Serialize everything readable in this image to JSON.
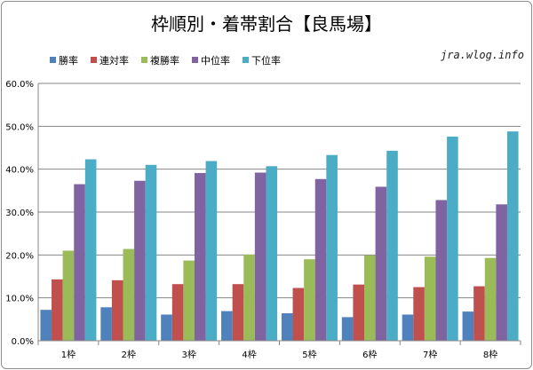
{
  "watermark": "jra.wlog.info",
  "chart_data": {
    "type": "bar",
    "title": "枠順別・着帯割合【良馬場】",
    "xlabel": "",
    "ylabel": "",
    "categories": [
      "1枠",
      "2枠",
      "3枠",
      "4枠",
      "5枠",
      "6枠",
      "7枠",
      "8枠"
    ],
    "ylim": [
      0,
      60
    ],
    "yticks": [
      "0.0%",
      "10.0%",
      "20.0%",
      "30.0%",
      "40.0%",
      "50.0%",
      "60.0%"
    ],
    "grid": true,
    "legend_position": "top-left",
    "series": [
      {
        "name": "勝率",
        "color": "#4f81bd",
        "values": [
          7.2,
          7.8,
          6.1,
          6.9,
          6.4,
          5.5,
          6.1,
          6.8
        ]
      },
      {
        "name": "連対率",
        "color": "#c0504d",
        "values": [
          14.3,
          14.1,
          13.2,
          13.2,
          12.3,
          13.1,
          12.5,
          12.7
        ]
      },
      {
        "name": "複勝率",
        "color": "#9bbb59",
        "values": [
          21.0,
          21.4,
          18.7,
          20.1,
          19.0,
          19.9,
          19.6,
          19.3
        ]
      },
      {
        "name": "中位率",
        "color": "#8064a2",
        "values": [
          36.5,
          37.3,
          39.1,
          39.2,
          37.7,
          35.9,
          32.8,
          31.8
        ]
      },
      {
        "name": "下位率",
        "color": "#4bacc6",
        "values": [
          42.3,
          41.0,
          41.9,
          40.7,
          43.3,
          44.3,
          47.6,
          48.8
        ]
      }
    ]
  }
}
